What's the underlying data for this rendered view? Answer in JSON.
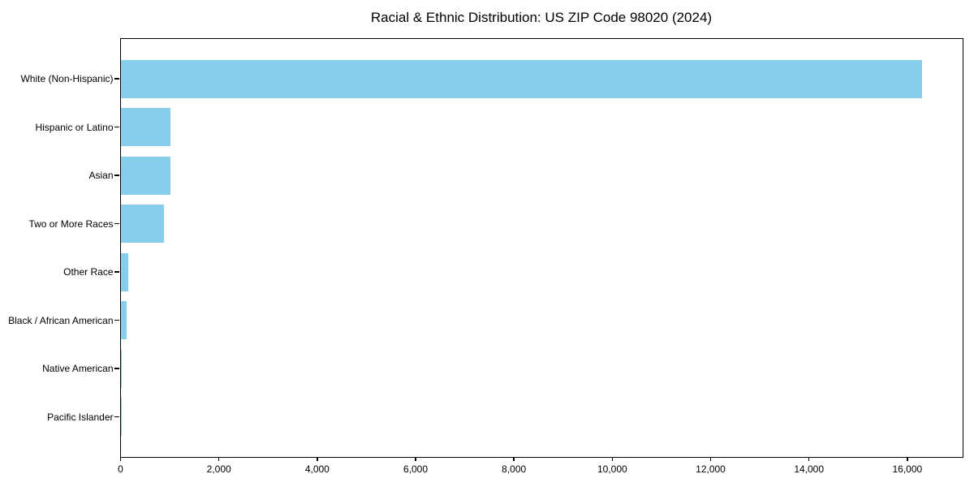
{
  "page": {
    "background_color": "#ffffff",
    "text_color": "#000000"
  },
  "chart_data": {
    "type": "bar",
    "orientation": "horizontal",
    "title": "Racial & Ethnic Distribution: US ZIP Code 98020 (2024)",
    "categories": [
      "White (Non-Hispanic)",
      "Hispanic or Latino",
      "Asian",
      "Two or More Races",
      "Other Race",
      "Black / African American",
      "Native American",
      "Pacific Islander"
    ],
    "values": [
      16300,
      1020,
      1010,
      890,
      150,
      130,
      20,
      5
    ],
    "bar_color": "#87CEEB",
    "axis_color": "#000000",
    "xlabel": "",
    "ylabel": "",
    "xlim": [
      0,
      17100
    ],
    "x_ticks": [
      0,
      2000,
      4000,
      6000,
      8000,
      10000,
      12000,
      14000,
      16000
    ],
    "x_tick_labels": [
      "0",
      "2,000",
      "4,000",
      "6,000",
      "8,000",
      "10,000",
      "12,000",
      "14,000",
      "16,000"
    ],
    "grid": false,
    "legend": null
  }
}
